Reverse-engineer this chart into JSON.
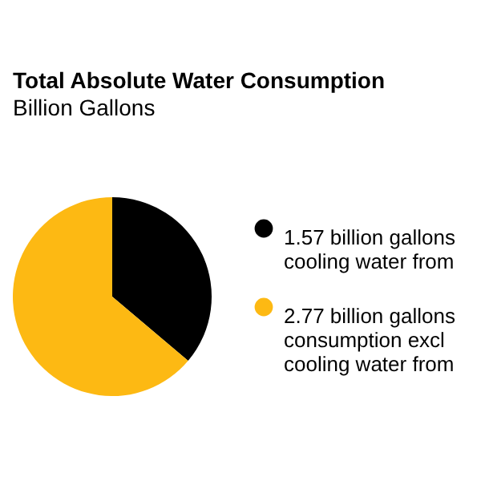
{
  "chart_data": {
    "type": "pie",
    "title": "Total Absolute Water Consumption",
    "subtitle": "Billion Gallons",
    "categories": [
      "1.57 billion gallons cooling water from",
      "2.77 billion gallons consumption excl cooling water from"
    ],
    "values": [
      1.57,
      2.77
    ],
    "colors": [
      "#000000",
      "#fdb913"
    ],
    "legend": "right"
  }
}
